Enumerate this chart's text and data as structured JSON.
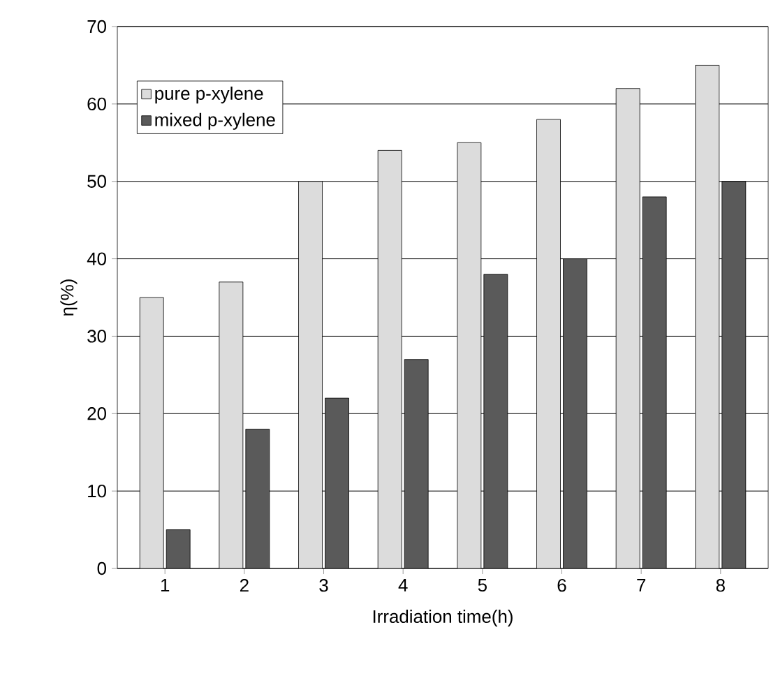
{
  "chart_data": {
    "type": "bar",
    "xlabel": "Irradiation time(h)",
    "ylabel": "η(%)",
    "categories": [
      "1",
      "2",
      "3",
      "4",
      "5",
      "6",
      "7",
      "8"
    ],
    "series": [
      {
        "name": "pure p-xylene",
        "color": "#dcdcdc",
        "values": [
          35,
          37,
          50,
          54,
          55,
          58,
          62,
          65
        ]
      },
      {
        "name": "mixed p-xylene",
        "color": "#5a5a5a",
        "values": [
          5,
          18,
          22,
          27,
          38,
          40,
          48,
          50
        ]
      }
    ],
    "ylim": [
      0,
      70
    ],
    "yticks": [
      0,
      10,
      20,
      30,
      40,
      50,
      60,
      70
    ],
    "grid": "y",
    "legend": "top left"
  }
}
